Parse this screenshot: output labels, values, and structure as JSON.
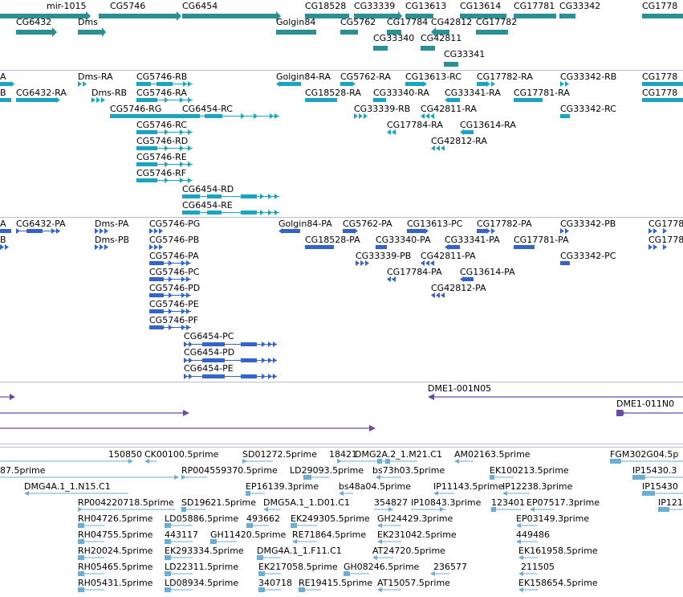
{
  "colors": {
    "gene": "#2b8f93",
    "transcript": "#1ba3c2",
    "protein": "#3564c8",
    "clone": "#6a4aa0",
    "est": "#6aaed6",
    "divider": "#b8bcd4"
  },
  "tracks": {
    "gene": {
      "labels": [
        "mir-1015",
        "CG5746",
        "CG6454",
        "CG18528",
        "CG33339",
        "CG13613",
        "CG13614",
        "CG17781",
        "CG33342",
        "CG1778",
        "CG6432",
        "Dms",
        "Golgin84",
        "CG5762",
        "CG17784",
        "CG42812",
        "CG17782",
        "CG33340",
        "CG42811",
        "CG33341"
      ]
    },
    "transcript": {
      "labels": [
        "A",
        "Dms-RA",
        "CG5746-RB",
        "Golgin84-RA",
        "CG5762-RA",
        "CG13613-RC",
        "CG17782-RA",
        "CG33342-RB",
        "CG1778",
        "B",
        "CG6432-RA",
        "Dms-RB",
        "CG5746-RA",
        "CG18528-RA",
        "CG33340-RA",
        "CG33341-RA",
        "CG17781-RA",
        "CG1778",
        "CG5746-RG",
        "CG6454-RC",
        "CG33339-RB",
        "CG42811-RA",
        "CG33342-RC",
        "CG5746-RC",
        "CG17784-RA",
        "CG13614-RA",
        "CG5746-RD",
        "CG42812-RA",
        "CG5746-RE",
        "CG5746-RF",
        "CG6454-RD",
        "CG6454-RE"
      ]
    },
    "protein": {
      "labels": [
        "A",
        "CG6432-PA",
        "Dms-PA",
        "CG5746-PG",
        "Golgin84-PA",
        "CG5762-PA",
        "CG13613-PC",
        "CG17782-PA",
        "CG33342-PB",
        "CG1778",
        "B",
        "Dms-PB",
        "CG5746-PB",
        "CG18528-PA",
        "CG33340-PA",
        "CG33341-PA",
        "CG17781-PA",
        "CG1778",
        "CG5746-PA",
        "CG33339-PB",
        "CG42811-PA",
        "CG33342-PC",
        "CG5746-PC",
        "CG17784-PA",
        "CG13614-PA",
        "CG5746-PD",
        "CG42812-PA",
        "CG5746-PE",
        "CG5746-PF",
        "CG6454-PC",
        "CG6454-PD",
        "CG6454-PE"
      ]
    },
    "clone": {
      "labels": [
        "DME1-001N05",
        "DME1-011N0"
      ]
    },
    "est": {
      "labels": [
        "150850",
        "CK00100.5prime",
        "SD01272.5prime",
        "18421",
        "DMG2A.2_1.M21.C1",
        "AM02163.5prime",
        "FGM302G04.5p",
        "87.5prime",
        "RP004559370.5prime",
        "LD29093.5prime",
        "bs73h03.5prime",
        "EK100213.5prime",
        "IP15430.3",
        "DMG4A.1_1.N15.C1",
        "EP16139.3prime",
        "bs48a04.5prime",
        "IP11143.5prime",
        "IP12238.3prime",
        "IP15430",
        "RP004220718.5prime",
        "SD19621.5prime",
        "DMG5A.1_1.D01.C1",
        "354827",
        "IP10843.3prime",
        "123401",
        "EP07517.3prime",
        "IP121",
        "RH04726.5prime",
        "LD05886.5prime",
        "493662",
        "EK249305.5prime",
        "GH24429.3prime",
        "EP03149.3prime",
        "RH04755.5prime",
        "443117",
        "GH11420.5prime",
        "RE71864.5prime",
        "EK231042.5prime",
        "449486",
        "RH20024.5prime",
        "EK293334.5prime",
        "DMG4A.1_1.F11.C1",
        "AT24720.5prime",
        "EK161958.5prime",
        "RH05465.5prime",
        "LD22311.5prime",
        "EK217058.5prime",
        "GH08246.5prime",
        "236577",
        "211505",
        "RH05431.5prime",
        "LD08934.5prime",
        "340718",
        "RE19415.5prime",
        "AT15057.5prime",
        "EK158654.5prime"
      ]
    }
  }
}
